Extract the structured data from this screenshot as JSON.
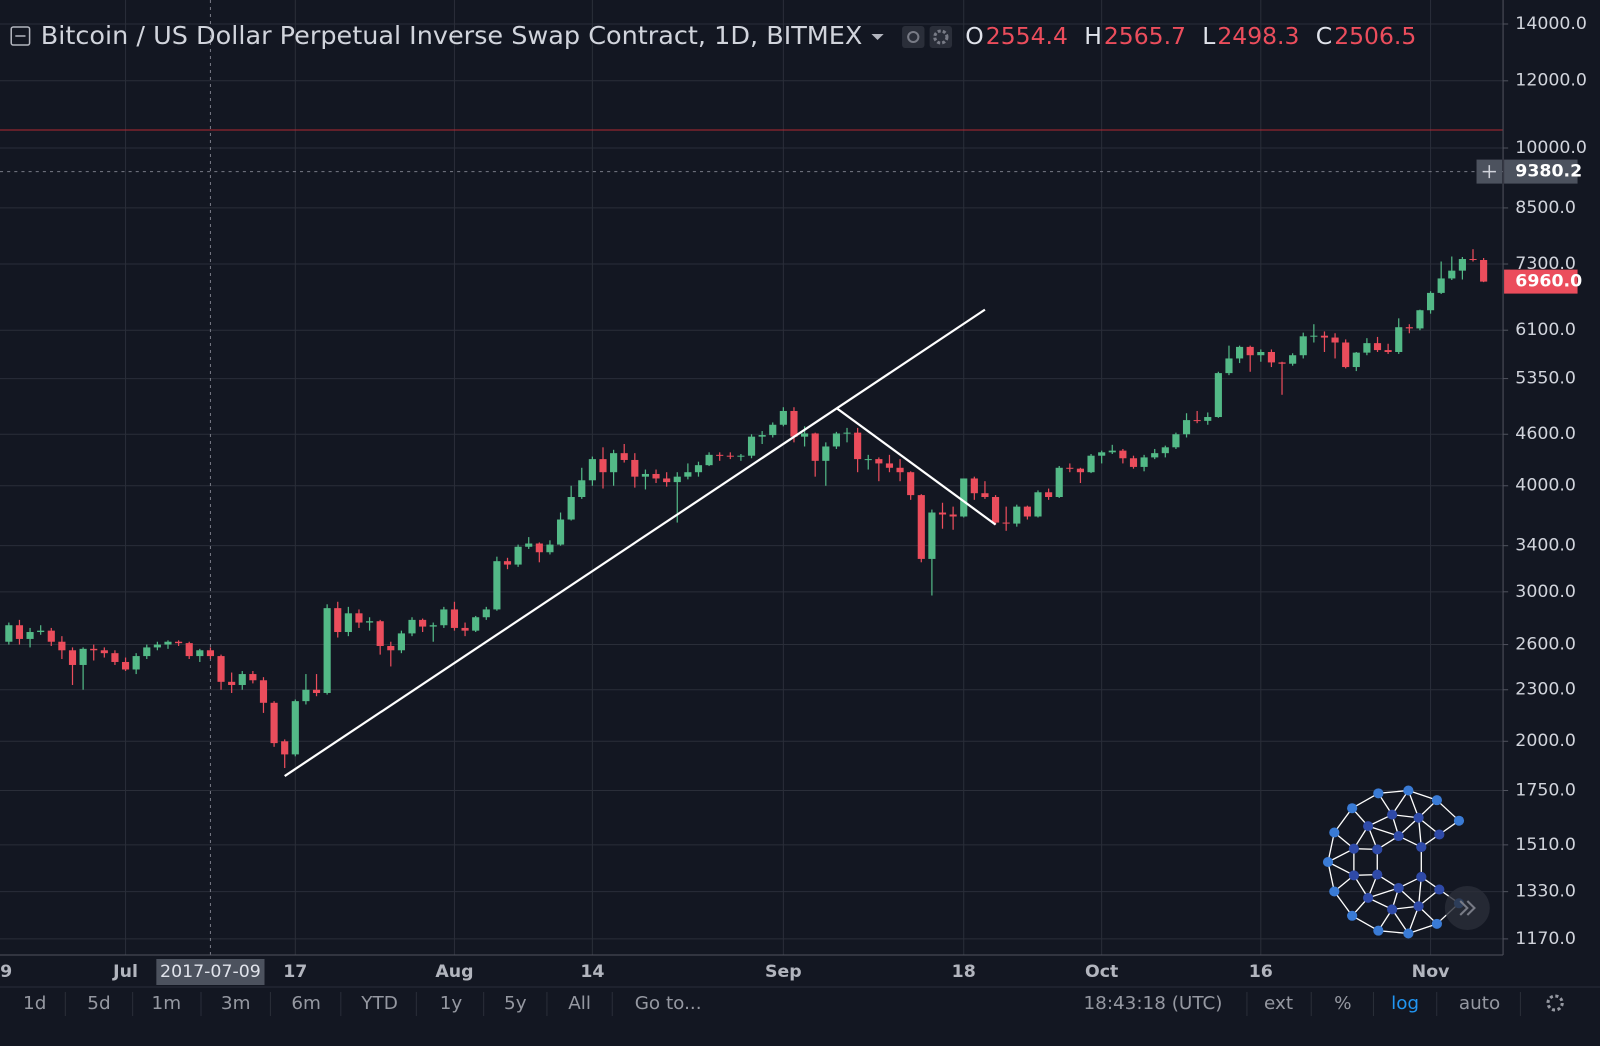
{
  "chart_data": {
    "type": "candlestick",
    "title": "Bitcoin / US Dollar Perpetual Inverse Swap Contract, 1D, BITMEX",
    "legend_values": [
      {
        "label": "O",
        "value": 2554.4
      },
      {
        "label": "H",
        "value": 2565.7
      },
      {
        "label": "L",
        "value": 2498.3
      },
      {
        "label": "C",
        "value": 2506.5
      }
    ],
    "log": true,
    "grid": true,
    "up_color": "#53b987",
    "down_color": "#eb4d5c",
    "ylim": [
      1120,
      14740
    ],
    "yticks": [
      {
        "value": 1170,
        "label": "1170.0"
      },
      {
        "value": 1330,
        "label": "1330.0"
      },
      {
        "value": 1510,
        "label": "1510.0"
      },
      {
        "value": 1750,
        "label": "1750.0"
      },
      {
        "value": 2000,
        "label": "2000.0"
      },
      {
        "value": 2300,
        "label": "2300.0"
      },
      {
        "value": 2600,
        "label": "2600.0"
      },
      {
        "value": 3000,
        "label": "3000.0"
      },
      {
        "value": 3400,
        "label": "3400.0"
      },
      {
        "value": 4000,
        "label": "4000.0"
      },
      {
        "value": 4600,
        "label": "4600.0"
      },
      {
        "value": 5350,
        "label": "5350.0"
      },
      {
        "value": 6100,
        "label": "6100.0"
      },
      {
        "value": 7300,
        "label": "7300.0"
      },
      {
        "value": 8500,
        "label": "8500.0"
      },
      {
        "value": 10000,
        "label": "10000.0"
      },
      {
        "value": 12000,
        "label": "12000.0"
      },
      {
        "value": 14000,
        "label": "14000.0"
      }
    ],
    "xlim": [
      "2017-06-19T04:00Z",
      "2017-11-07T20:00Z"
    ],
    "xticks": [
      {
        "value": "2017-06-19",
        "label": "9"
      },
      {
        "value": "2017-07-01",
        "label": "Jul"
      },
      {
        "value": "2017-07-17",
        "label": "17"
      },
      {
        "value": "2017-08-01",
        "label": "Aug"
      },
      {
        "value": "2017-08-14",
        "label": "14"
      },
      {
        "value": "2017-09-01",
        "label": "Sep"
      },
      {
        "value": "2017-09-18",
        "label": "18"
      },
      {
        "value": "2017-10-01",
        "label": "Oct"
      },
      {
        "value": "2017-10-16",
        "label": "16"
      },
      {
        "value": "2017-11-01",
        "label": "Nov"
      }
    ],
    "crosshair": {
      "date": "2017-07-09",
      "price": 9380.2
    },
    "last_price": {
      "value": 6960,
      "label": "6960.0"
    },
    "alert_line": 10500,
    "trendlines": [
      [
        [
          "2017-07-16",
          1820
        ],
        [
          "2017-09-20",
          6450
        ]
      ],
      [
        [
          "2017-09-06",
          4940
        ],
        [
          "2017-09-21",
          3600
        ]
      ]
    ],
    "x": [
      "2017-06-20",
      "2017-06-21",
      "2017-06-22",
      "2017-06-23",
      "2017-06-24",
      "2017-06-25",
      "2017-06-26",
      "2017-06-27",
      "2017-06-28",
      "2017-06-29",
      "2017-06-30",
      "2017-07-01",
      "2017-07-02",
      "2017-07-03",
      "2017-07-04",
      "2017-07-05",
      "2017-07-06",
      "2017-07-07",
      "2017-07-08",
      "2017-07-09",
      "2017-07-10",
      "2017-07-11",
      "2017-07-12",
      "2017-07-13",
      "2017-07-14",
      "2017-07-15",
      "2017-07-16",
      "2017-07-17",
      "2017-07-18",
      "2017-07-19",
      "2017-07-20",
      "2017-07-21",
      "2017-07-22",
      "2017-07-23",
      "2017-07-24",
      "2017-07-25",
      "2017-07-26",
      "2017-07-27",
      "2017-07-28",
      "2017-07-29",
      "2017-07-30",
      "2017-07-31",
      "2017-08-01",
      "2017-08-02",
      "2017-08-03",
      "2017-08-04",
      "2017-08-05",
      "2017-08-06",
      "2017-08-07",
      "2017-08-08",
      "2017-08-09",
      "2017-08-10",
      "2017-08-11",
      "2017-08-12",
      "2017-08-13",
      "2017-08-14",
      "2017-08-15",
      "2017-08-16",
      "2017-08-17",
      "2017-08-18",
      "2017-08-19",
      "2017-08-20",
      "2017-08-21",
      "2017-08-22",
      "2017-08-23",
      "2017-08-24",
      "2017-08-25",
      "2017-08-26",
      "2017-08-27",
      "2017-08-28",
      "2017-08-29",
      "2017-08-30",
      "2017-08-31",
      "2017-09-01",
      "2017-09-02",
      "2017-09-03",
      "2017-09-04",
      "2017-09-05",
      "2017-09-06",
      "2017-09-07",
      "2017-09-08",
      "2017-09-09",
      "2017-09-10",
      "2017-09-11",
      "2017-09-12",
      "2017-09-13",
      "2017-09-14",
      "2017-09-15",
      "2017-09-16",
      "2017-09-17",
      "2017-09-18",
      "2017-09-19",
      "2017-09-20",
      "2017-09-21",
      "2017-09-22",
      "2017-09-23",
      "2017-09-24",
      "2017-09-25",
      "2017-09-26",
      "2017-09-27",
      "2017-09-28",
      "2017-09-29",
      "2017-09-30",
      "2017-10-01",
      "2017-10-02",
      "2017-10-03",
      "2017-10-04",
      "2017-10-05",
      "2017-10-06",
      "2017-10-07",
      "2017-10-08",
      "2017-10-09",
      "2017-10-10",
      "2017-10-11",
      "2017-10-12",
      "2017-10-13",
      "2017-10-14",
      "2017-10-15",
      "2017-10-16",
      "2017-10-17",
      "2017-10-18",
      "2017-10-19",
      "2017-10-20",
      "2017-10-21",
      "2017-10-22",
      "2017-10-23",
      "2017-10-24",
      "2017-10-25",
      "2017-10-26",
      "2017-10-27",
      "2017-10-28",
      "2017-10-29",
      "2017-10-30",
      "2017-10-31",
      "2017-11-01",
      "2017-11-02",
      "2017-11-03",
      "2017-11-04",
      "2017-11-05",
      "2017-11-06"
    ],
    "ohlc": [
      [
        2620,
        2760,
        2600,
        2740
      ],
      [
        2740,
        2780,
        2600,
        2640
      ],
      [
        2640,
        2720,
        2580,
        2690
      ],
      [
        2690,
        2740,
        2670,
        2700
      ],
      [
        2700,
        2720,
        2590,
        2620
      ],
      [
        2620,
        2660,
        2500,
        2560
      ],
      [
        2560,
        2580,
        2330,
        2460
      ],
      [
        2460,
        2580,
        2300,
        2570
      ],
      [
        2570,
        2600,
        2490,
        2560
      ],
      [
        2560,
        2580,
        2510,
        2540
      ],
      [
        2540,
        2560,
        2460,
        2480
      ],
      [
        2480,
        2510,
        2420,
        2430
      ],
      [
        2430,
        2540,
        2400,
        2520
      ],
      [
        2520,
        2600,
        2500,
        2580
      ],
      [
        2580,
        2620,
        2560,
        2600
      ],
      [
        2600,
        2630,
        2570,
        2620
      ],
      [
        2620,
        2630,
        2590,
        2610
      ],
      [
        2610,
        2620,
        2500,
        2520
      ],
      [
        2520,
        2570,
        2480,
        2560
      ],
      [
        2560,
        2580,
        2500,
        2520
      ],
      [
        2520,
        2530,
        2300,
        2350
      ],
      [
        2350,
        2410,
        2280,
        2330
      ],
      [
        2330,
        2420,
        2300,
        2400
      ],
      [
        2400,
        2420,
        2340,
        2360
      ],
      [
        2360,
        2380,
        2160,
        2220
      ],
      [
        2220,
        2230,
        1970,
        1990
      ],
      [
        2000,
        2010,
        1860,
        1930
      ],
      [
        1930,
        2240,
        1920,
        2230
      ],
      [
        2230,
        2400,
        2210,
        2300
      ],
      [
        2300,
        2400,
        2260,
        2280
      ],
      [
        2280,
        2900,
        2270,
        2870
      ],
      [
        2870,
        2920,
        2650,
        2690
      ],
      [
        2690,
        2880,
        2660,
        2830
      ],
      [
        2830,
        2860,
        2720,
        2760
      ],
      [
        2760,
        2800,
        2700,
        2770
      ],
      [
        2770,
        2780,
        2530,
        2590
      ],
      [
        2590,
        2620,
        2450,
        2560
      ],
      [
        2560,
        2700,
        2540,
        2680
      ],
      [
        2680,
        2800,
        2660,
        2780
      ],
      [
        2780,
        2790,
        2690,
        2730
      ],
      [
        2730,
        2760,
        2620,
        2740
      ],
      [
        2740,
        2880,
        2720,
        2860
      ],
      [
        2860,
        2920,
        2700,
        2720
      ],
      [
        2720,
        2760,
        2660,
        2700
      ],
      [
        2700,
        2810,
        2690,
        2800
      ],
      [
        2800,
        2880,
        2780,
        2860
      ],
      [
        2860,
        3300,
        2850,
        3260
      ],
      [
        3260,
        3290,
        3190,
        3230
      ],
      [
        3230,
        3410,
        3210,
        3390
      ],
      [
        3390,
        3480,
        3370,
        3420
      ],
      [
        3420,
        3430,
        3250,
        3340
      ],
      [
        3340,
        3450,
        3320,
        3410
      ],
      [
        3410,
        3720,
        3400,
        3650
      ],
      [
        3650,
        4000,
        3640,
        3880
      ],
      [
        3880,
        4200,
        3860,
        4060
      ],
      [
        4060,
        4330,
        4000,
        4300
      ],
      [
        4300,
        4440,
        3970,
        4150
      ],
      [
        4150,
        4410,
        4000,
        4370
      ],
      [
        4370,
        4480,
        4260,
        4290
      ],
      [
        4290,
        4370,
        3980,
        4100
      ],
      [
        4100,
        4180,
        3960,
        4130
      ],
      [
        4130,
        4180,
        4030,
        4080
      ],
      [
        4080,
        4150,
        3990,
        4040
      ],
      [
        4040,
        4150,
        3620,
        4100
      ],
      [
        4100,
        4250,
        4070,
        4150
      ],
      [
        4150,
        4270,
        4100,
        4230
      ],
      [
        4230,
        4380,
        4220,
        4350
      ],
      [
        4350,
        4380,
        4280,
        4340
      ],
      [
        4340,
        4380,
        4300,
        4330
      ],
      [
        4330,
        4360,
        4280,
        4340
      ],
      [
        4340,
        4600,
        4310,
        4570
      ],
      [
        4570,
        4640,
        4480,
        4590
      ],
      [
        4590,
        4750,
        4560,
        4720
      ],
      [
        4720,
        4950,
        4700,
        4900
      ],
      [
        4900,
        4950,
        4500,
        4570
      ],
      [
        4570,
        4700,
        4450,
        4610
      ],
      [
        4610,
        4620,
        4100,
        4280
      ],
      [
        4280,
        4500,
        4000,
        4450
      ],
      [
        4450,
        4630,
        4420,
        4610
      ],
      [
        4610,
        4680,
        4500,
        4620
      ],
      [
        4620,
        4680,
        4150,
        4300
      ],
      [
        4300,
        4350,
        4180,
        4300
      ],
      [
        4300,
        4320,
        4050,
        4250
      ],
      [
        4250,
        4350,
        4150,
        4200
      ],
      [
        4200,
        4300,
        4050,
        4150
      ],
      [
        4150,
        4160,
        3850,
        3900
      ],
      [
        3900,
        3910,
        3250,
        3280
      ],
      [
        3280,
        3750,
        2970,
        3720
      ],
      [
        3720,
        3820,
        3560,
        3700
      ],
      [
        3700,
        3780,
        3550,
        3680
      ],
      [
        3680,
        4080,
        3670,
        4080
      ],
      [
        4080,
        4100,
        3850,
        3920
      ],
      [
        3920,
        4050,
        3860,
        3880
      ],
      [
        3880,
        3900,
        3600,
        3620
      ],
      [
        3620,
        3780,
        3540,
        3610
      ],
      [
        3610,
        3800,
        3580,
        3780
      ],
      [
        3780,
        3790,
        3650,
        3680
      ],
      [
        3680,
        3950,
        3670,
        3930
      ],
      [
        3930,
        3970,
        3850,
        3880
      ],
      [
        3880,
        4220,
        3870,
        4200
      ],
      [
        4200,
        4250,
        4150,
        4190
      ],
      [
        4190,
        4200,
        4030,
        4150
      ],
      [
        4150,
        4360,
        4140,
        4340
      ],
      [
        4340,
        4400,
        4250,
        4380
      ],
      [
        4380,
        4470,
        4360,
        4400
      ],
      [
        4400,
        4420,
        4250,
        4310
      ],
      [
        4310,
        4340,
        4190,
        4210
      ],
      [
        4210,
        4350,
        4160,
        4320
      ],
      [
        4320,
        4420,
        4300,
        4370
      ],
      [
        4370,
        4460,
        4320,
        4440
      ],
      [
        4440,
        4620,
        4420,
        4600
      ],
      [
        4600,
        4870,
        4560,
        4780
      ],
      [
        4780,
        4900,
        4740,
        4770
      ],
      [
        4770,
        4880,
        4720,
        4820
      ],
      [
        4820,
        5450,
        4810,
        5430
      ],
      [
        5430,
        5850,
        5400,
        5650
      ],
      [
        5650,
        5850,
        5580,
        5830
      ],
      [
        5830,
        5850,
        5450,
        5700
      ],
      [
        5700,
        5790,
        5600,
        5750
      ],
      [
        5750,
        5790,
        5520,
        5590
      ],
      [
        5590,
        5600,
        5120,
        5570
      ],
      [
        5570,
        5730,
        5540,
        5700
      ],
      [
        5700,
        6060,
        5650,
        6000
      ],
      [
        6000,
        6200,
        5900,
        6010
      ],
      [
        6010,
        6080,
        5750,
        5980
      ],
      [
        5980,
        6050,
        5650,
        5900
      ],
      [
        5900,
        5950,
        5500,
        5520
      ],
      [
        5520,
        5750,
        5460,
        5740
      ],
      [
        5740,
        5970,
        5700,
        5890
      ],
      [
        5890,
        5990,
        5750,
        5780
      ],
      [
        5780,
        5880,
        5720,
        5750
      ],
      [
        5750,
        6300,
        5720,
        6150
      ],
      [
        6150,
        6200,
        6050,
        6130
      ],
      [
        6130,
        6450,
        6100,
        6440
      ],
      [
        6440,
        6780,
        6380,
        6750
      ],
      [
        6750,
        7350,
        6730,
        7020
      ],
      [
        7020,
        7450,
        6990,
        7170
      ],
      [
        7170,
        7440,
        7000,
        7400
      ],
      [
        7400,
        7600,
        7350,
        7380
      ],
      [
        7380,
        7420,
        6950,
        6960
      ]
    ]
  },
  "toolbar": {
    "ranges": [
      "1d",
      "5d",
      "1m",
      "3m",
      "6m",
      "YTD",
      "1y",
      "5y",
      "All"
    ],
    "goto": "Go to...",
    "clock": "18:43:18 (UTC)",
    "options": [
      "ext",
      "%",
      "log",
      "auto"
    ]
  }
}
